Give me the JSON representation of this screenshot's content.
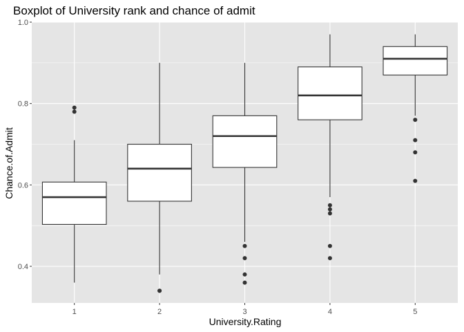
{
  "chart_data": {
    "type": "boxplot",
    "title": "Boxplot of University rank and chance of admit",
    "xlabel": "University.Rating",
    "ylabel": "Chance.of.Admit",
    "ylim": [
      0.31,
      1.0
    ],
    "y_ticks": [
      "0.4",
      "0.6",
      "0.8",
      "1.0"
    ],
    "categories": [
      "1",
      "2",
      "3",
      "4",
      "5"
    ],
    "grid": true,
    "colors": {
      "panel_background": "#e5e5e5",
      "grid_major": "#ffffff",
      "box_fill": "#ffffff",
      "box_stroke": "#333333",
      "outlier": "#333333"
    },
    "boxes": [
      {
        "category": "1",
        "whisker_low": 0.36,
        "q1": 0.503,
        "median": 0.57,
        "q3": 0.607,
        "whisker_high": 0.71,
        "outliers": [
          0.78,
          0.79
        ]
      },
      {
        "category": "2",
        "whisker_low": 0.38,
        "q1": 0.56,
        "median": 0.64,
        "q3": 0.7,
        "whisker_high": 0.9,
        "outliers": [
          0.34,
          0.34
        ]
      },
      {
        "category": "3",
        "whisker_low": 0.46,
        "q1": 0.643,
        "median": 0.72,
        "q3": 0.77,
        "whisker_high": 0.9,
        "outliers": [
          0.36,
          0.38,
          0.42,
          0.45
        ]
      },
      {
        "category": "4",
        "whisker_low": 0.57,
        "q1": 0.76,
        "median": 0.82,
        "q3": 0.89,
        "whisker_high": 0.97,
        "outliers": [
          0.42,
          0.45,
          0.53,
          0.54,
          0.55
        ]
      },
      {
        "category": "5",
        "whisker_low": 0.77,
        "q1": 0.87,
        "median": 0.91,
        "q3": 0.94,
        "whisker_high": 0.97,
        "outliers": [
          0.61,
          0.68,
          0.71,
          0.76
        ]
      }
    ]
  }
}
